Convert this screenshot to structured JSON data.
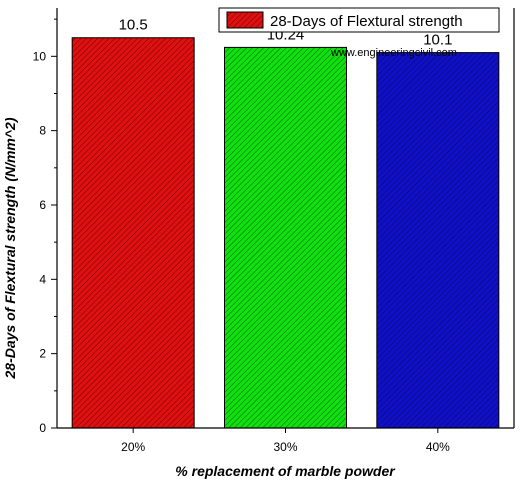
{
  "chart_data": {
    "type": "bar",
    "categories": [
      "20%",
      "30%",
      "40%"
    ],
    "series": [
      {
        "name": "28-Days of Flextural strength",
        "values": [
          10.5,
          10.24,
          10.1
        ]
      }
    ],
    "bar_colors": [
      "#e01010",
      "#10e010",
      "#1010c8"
    ],
    "data_labels": [
      "10.5",
      "10.24",
      "10.1"
    ],
    "xlabel": "% replacement of marble powder",
    "ylabel": "28-Days of Flextural strength (N/mm^2)",
    "ylim": [
      0,
      11.3
    ],
    "yticks": [
      0,
      2,
      4,
      6,
      8,
      10
    ],
    "grid": false,
    "legend_position": "top-right",
    "watermark": "www.engineeringcivil.com",
    "bar_pattern": "diagonal-hatch"
  }
}
